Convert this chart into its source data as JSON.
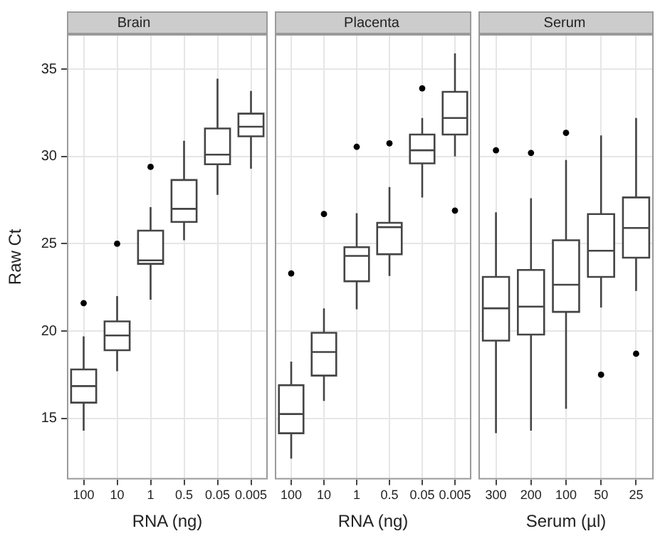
{
  "chart_data": [
    {
      "type": "box",
      "title": "Brain",
      "xlabel": "RNA (ng)",
      "ylabel": "Raw Ct",
      "categories": [
        "100",
        "10",
        "1",
        "0.5",
        "0.05",
        "0.005"
      ],
      "ylim": [
        11.5,
        37
      ],
      "yticks": [
        15,
        20,
        25,
        30,
        35
      ],
      "grid": true,
      "boxes": [
        {
          "low": 14.3,
          "q1": 15.9,
          "median": 16.85,
          "q3": 17.8,
          "high": 19.7,
          "outliers": [
            21.6
          ]
        },
        {
          "low": 17.7,
          "q1": 18.9,
          "median": 19.75,
          "q3": 20.55,
          "high": 22.0,
          "outliers": [
            25.0
          ]
        },
        {
          "low": 21.8,
          "q1": 23.85,
          "median": 24.05,
          "q3": 25.75,
          "high": 27.1,
          "outliers": [
            29.4
          ]
        },
        {
          "low": 25.2,
          "q1": 26.25,
          "median": 27.0,
          "q3": 28.65,
          "high": 30.9
        },
        {
          "low": 27.8,
          "q1": 29.55,
          "median": 30.1,
          "q3": 31.6,
          "high": 34.45
        },
        {
          "low": 29.3,
          "q1": 31.15,
          "median": 31.7,
          "q3": 32.45,
          "high": 33.75
        }
      ]
    },
    {
      "type": "box",
      "title": "Placenta",
      "xlabel": "RNA (ng)",
      "categories": [
        "100",
        "10",
        "1",
        "0.5",
        "0.05",
        "0.005"
      ],
      "ylim": [
        11.5,
        37
      ],
      "yticks": [
        15,
        20,
        25,
        30,
        35
      ],
      "grid": true,
      "tick_labels": "x",
      "boxes": [
        {
          "low": 12.7,
          "q1": 14.15,
          "median": 15.25,
          "q3": 16.9,
          "high": 18.25,
          "outliers": [
            23.3
          ]
        },
        {
          "low": 16.0,
          "q1": 17.45,
          "median": 18.8,
          "q3": 19.9,
          "high": 21.3,
          "outliers": [
            26.7
          ]
        },
        {
          "low": 21.25,
          "q1": 22.85,
          "median": 24.3,
          "q3": 24.8,
          "high": 26.75,
          "outliers": [
            30.55
          ]
        },
        {
          "low": 23.15,
          "q1": 24.4,
          "median": 25.95,
          "q3": 26.2,
          "high": 28.25,
          "outliers": [
            30.75
          ]
        },
        {
          "low": 27.65,
          "q1": 29.6,
          "median": 30.35,
          "q3": 31.25,
          "high": 32.2,
          "outliers": [
            33.9
          ]
        },
        {
          "low": 30.0,
          "q1": 31.25,
          "median": 32.2,
          "q3": 33.7,
          "high": 35.9,
          "outliers": [
            26.9
          ]
        }
      ]
    },
    {
      "type": "box",
      "title": "Serum",
      "xlabel": "Serum (µl)",
      "categories": [
        "300",
        "200",
        "100",
        "50",
        "25"
      ],
      "ylim": [
        11.5,
        37
      ],
      "yticks": [
        15,
        20,
        25,
        30,
        35
      ],
      "grid": true,
      "tick_labels": "x",
      "boxes": [
        {
          "low": 14.15,
          "q1": 19.45,
          "median": 21.3,
          "q3": 23.1,
          "high": 26.8,
          "outliers": [
            30.35
          ]
        },
        {
          "low": 14.3,
          "q1": 19.8,
          "median": 21.4,
          "q3": 23.5,
          "high": 27.6,
          "outliers": [
            30.2
          ]
        },
        {
          "low": 15.55,
          "q1": 21.1,
          "median": 22.65,
          "q3": 25.2,
          "high": 29.8,
          "outliers": [
            31.35
          ]
        },
        {
          "low": 21.35,
          "q1": 23.1,
          "median": 24.6,
          "q3": 26.7,
          "high": 31.2,
          "outliers": [
            17.5
          ]
        },
        {
          "low": 22.3,
          "q1": 24.2,
          "median": 25.9,
          "q3": 27.65,
          "high": 32.2,
          "outliers": [
            18.7
          ]
        }
      ]
    }
  ]
}
